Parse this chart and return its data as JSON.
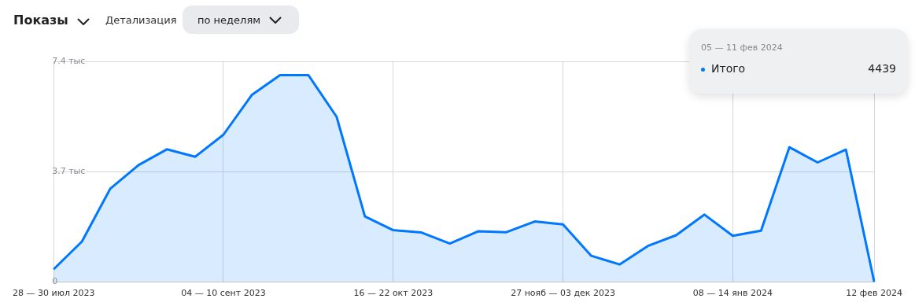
{
  "chart_data": {
    "type": "area",
    "title": "Показы",
    "annotations": [
      "Детализация",
      "по неделям",
      "05 — 11 фев 2024",
      "4439"
    ],
    "categories": [
      "28 — 30 июл 2023",
      null,
      null,
      null,
      null,
      null,
      "04 — 10 сент 2023",
      null,
      null,
      null,
      null,
      null,
      "16 — 22 окт 2023",
      null,
      null,
      null,
      null,
      null,
      "27 нояб — 03 дек 2023",
      null,
      null,
      null,
      null,
      null,
      "08 — 14 янв 2024",
      null,
      null,
      null,
      null,
      "12 фев 2024"
    ],
    "series": [
      {
        "name": "Итого",
        "color": "#0077ff",
        "values": [
          0.43,
          1.36,
          3.13,
          3.92,
          4.45,
          4.2,
          4.94,
          6.27,
          6.94,
          6.94,
          5.54,
          2.2,
          1.74,
          1.66,
          1.29,
          1.7,
          1.67,
          2.03,
          1.93,
          0.88,
          0.59,
          1.21,
          1.57,
          2.26,
          1.55,
          1.72,
          4.52,
          4.01,
          4.44,
          0
        ]
      }
    ],
    "ylim": [
      0,
      7.4
    ],
    "yticks": [
      {
        "value": 0,
        "label": "0"
      },
      {
        "value": 3.7,
        "label": "3.7 тыс"
      },
      {
        "value": 7.4,
        "label": "7.4 тыс"
      }
    ],
    "grid": true,
    "legend": "top right",
    "marker": "none",
    "line_style": "solid"
  }
}
